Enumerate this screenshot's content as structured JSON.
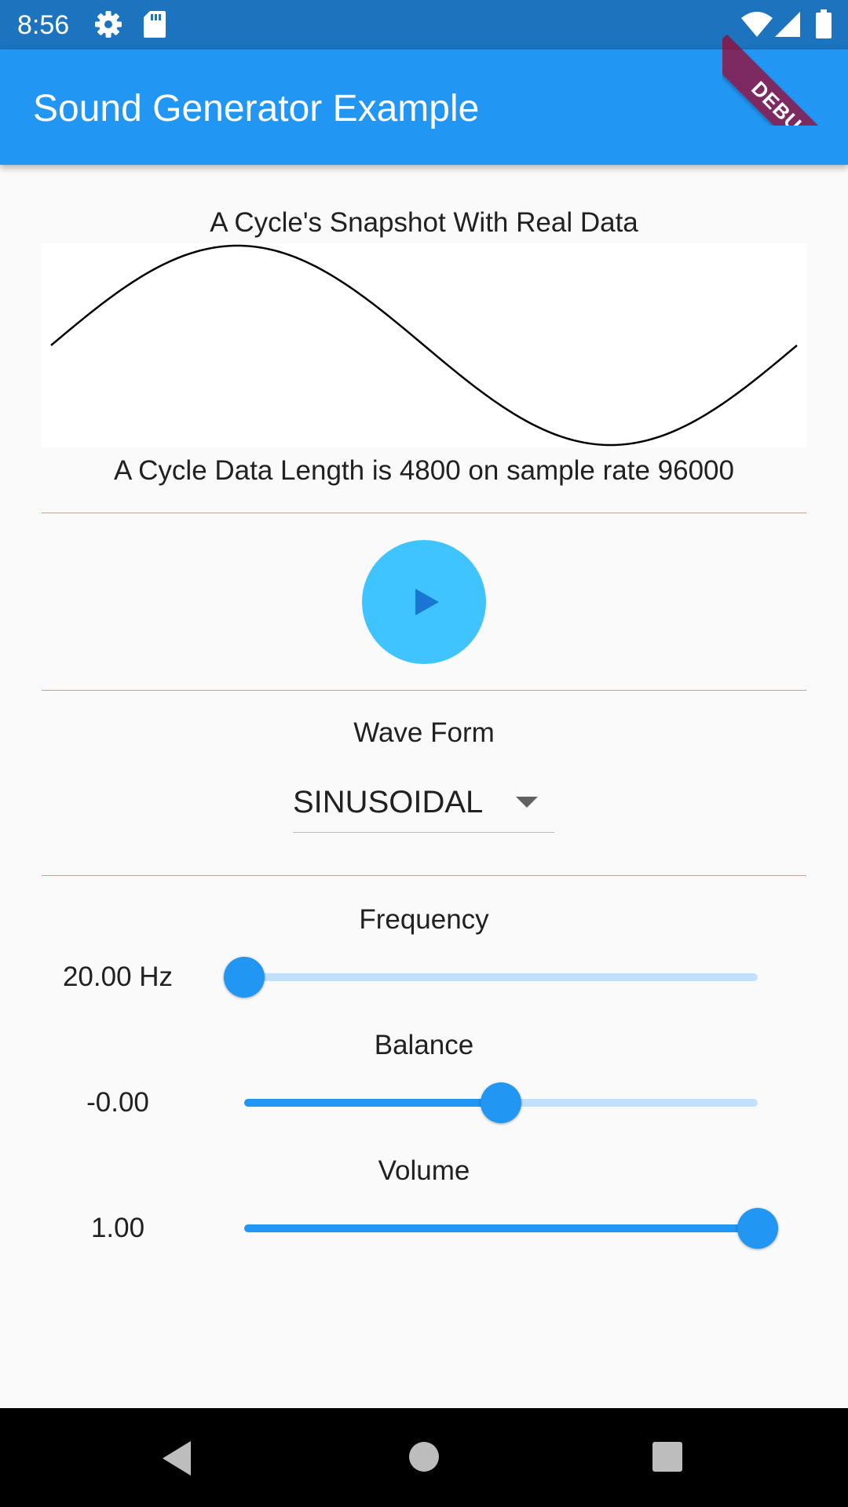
{
  "status_bar": {
    "time": "8:56",
    "icons": [
      "gear-icon",
      "sd-card-icon",
      "wifi-icon",
      "signal-icon",
      "battery-icon"
    ]
  },
  "app_bar": {
    "title": "Sound Generator Example",
    "color": "#2196f3"
  },
  "debug_banner": {
    "label": "DEBUG"
  },
  "snapshot": {
    "title": "A Cycle's Snapshot With Real Data",
    "info": "A Cycle Data Length is 4800 on sample rate 96000",
    "waveform": "sine"
  },
  "play_button": {
    "icon": "play-icon",
    "color": "#40c4ff"
  },
  "wave_form": {
    "label": "Wave Form",
    "selected": "SINUSOIDAL"
  },
  "sliders": {
    "frequency": {
      "label": "Frequency",
      "value_text": "20.00 Hz",
      "level": 0
    },
    "balance": {
      "label": "Balance",
      "value_text": "-0.00",
      "level": 0.5
    },
    "volume": {
      "label": "Volume",
      "value_text": "1.00",
      "level": 1
    }
  },
  "nav_bar": {
    "icons": [
      "back-icon",
      "home-icon",
      "recent-apps-icon"
    ]
  }
}
